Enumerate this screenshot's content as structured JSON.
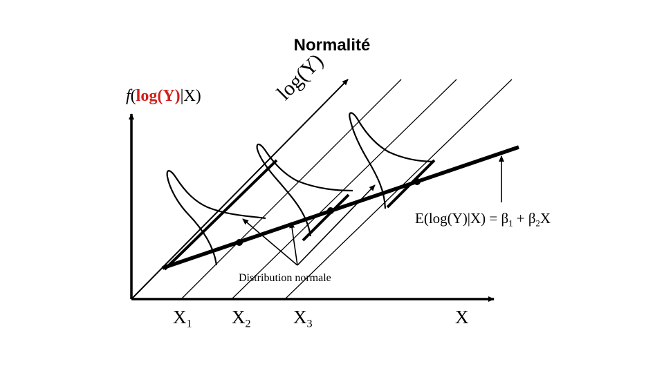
{
  "title": "Normalité",
  "y_axis_label": {
    "f": "f",
    "open": "(",
    "red": "log(Y)",
    "rest": "|X)"
  },
  "depth_axis_label": "log(Y)",
  "regression_label": {
    "text": "E(log(Y)|X) = β",
    "sub1": "1",
    "plus": " + β",
    "sub2": "2",
    "tail": "X"
  },
  "annotation": "Distribution normale",
  "x_ticks": [
    {
      "base": "X",
      "sub": "1"
    },
    {
      "base": "X",
      "sub": "2"
    },
    {
      "base": "X",
      "sub": "3"
    }
  ],
  "x_axis_label": "X",
  "colors": {
    "ink": "#000000",
    "accent": "#d0201d"
  }
}
